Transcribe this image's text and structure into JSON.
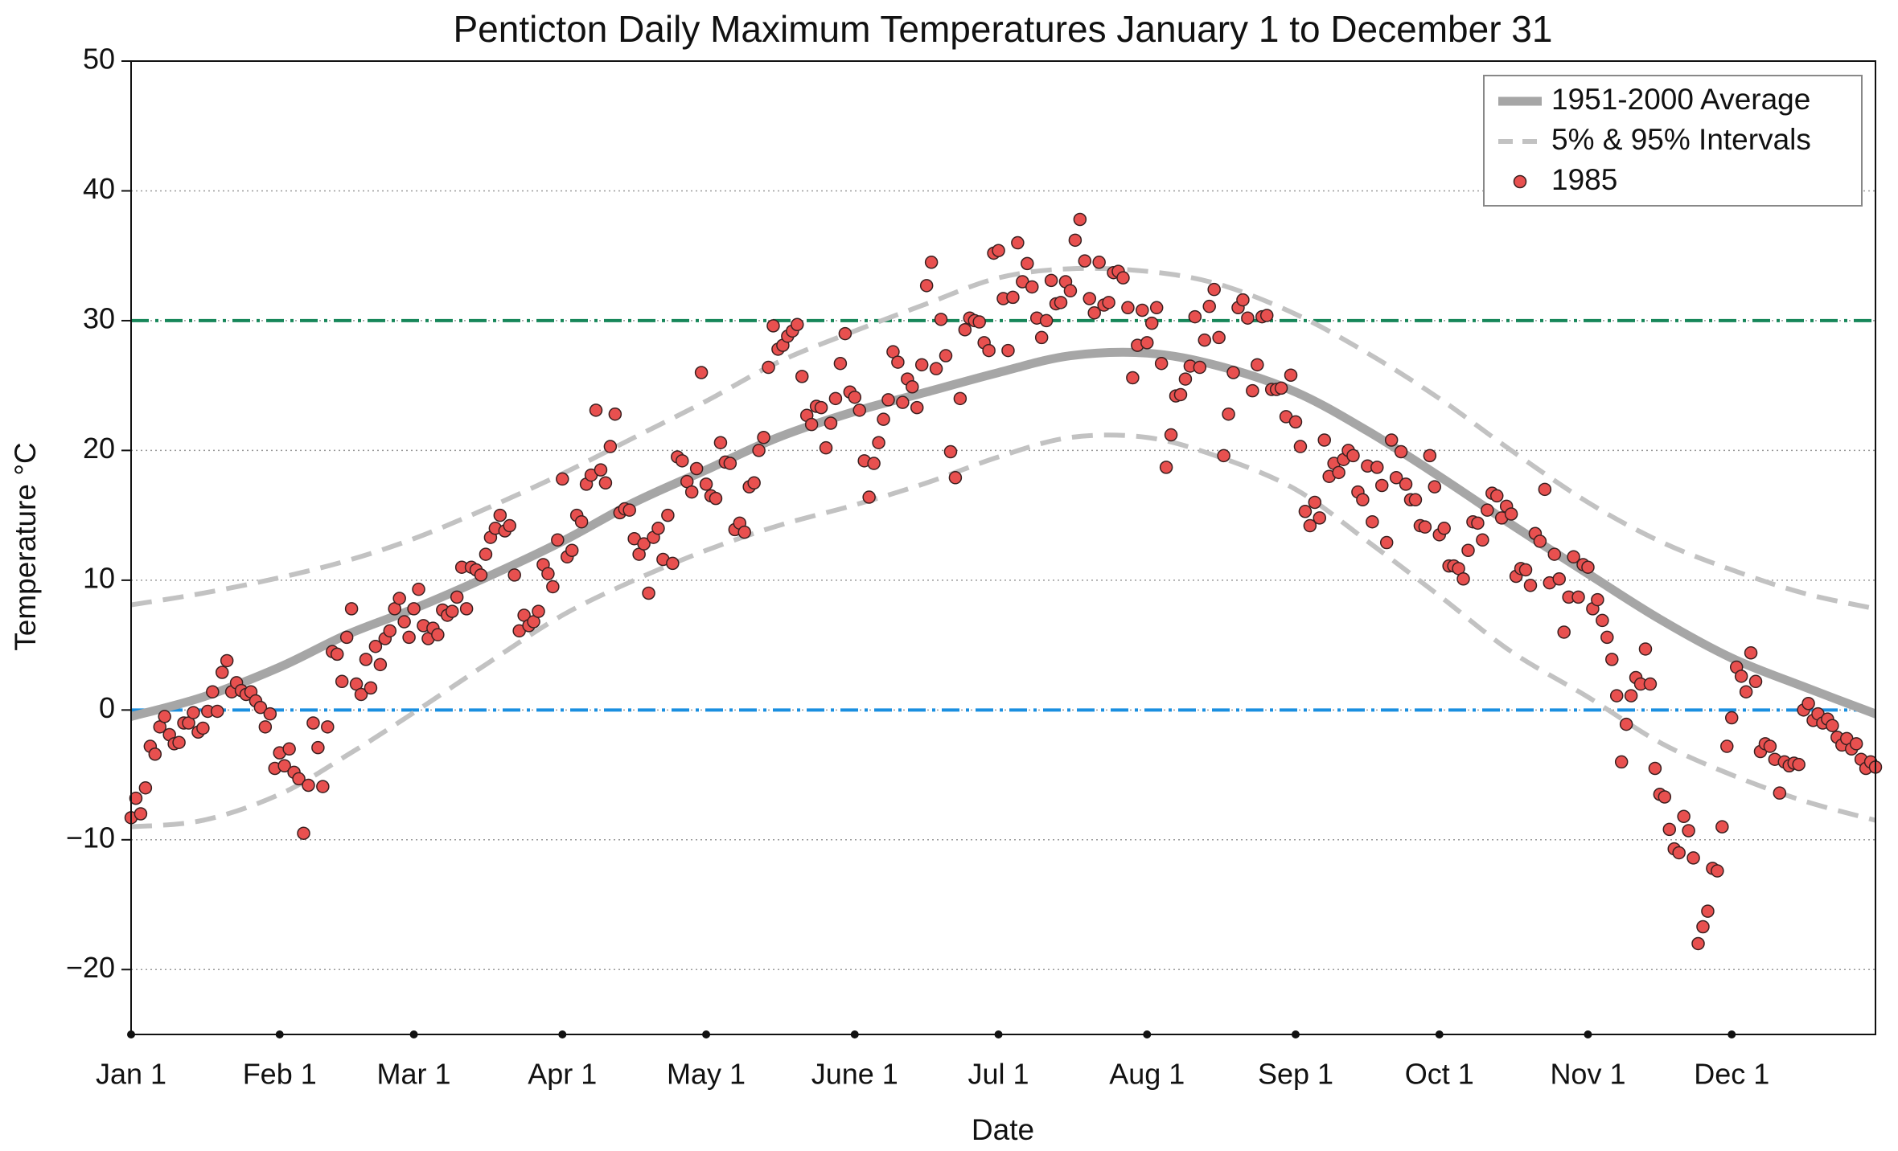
{
  "chart_data": {
    "type": "scatter",
    "title": "Penticton Daily Maximum Temperatures January 1 to December 31",
    "xlabel": "Date",
    "ylabel": "Temperature °C",
    "xlim": [
      1,
      365
    ],
    "ylim": [
      -25,
      50
    ],
    "xticks": [
      {
        "value": 1,
        "label": "Jan 1"
      },
      {
        "value": 32,
        "label": "Feb 1"
      },
      {
        "value": 60,
        "label": "Mar 1"
      },
      {
        "value": 91,
        "label": "Apr 1"
      },
      {
        "value": 121,
        "label": "May 1"
      },
      {
        "value": 152,
        "label": "June 1"
      },
      {
        "value": 182,
        "label": "Jul 1"
      },
      {
        "value": 213,
        "label": "Aug 1"
      },
      {
        "value": 244,
        "label": "Sep 1"
      },
      {
        "value": 274,
        "label": "Oct 1"
      },
      {
        "value": 305,
        "label": "Nov 1"
      },
      {
        "value": 335,
        "label": "Dec 1"
      }
    ],
    "yticks": [
      {
        "value": -20,
        "label": "−20"
      },
      {
        "value": -10,
        "label": "−10"
      },
      0,
      10,
      20,
      30,
      40,
      50
    ],
    "grid": true,
    "legend": "upper right",
    "hlines": [
      {
        "value": 30,
        "color": "#17875a"
      },
      {
        "value": 0,
        "color": "#1a8fe0"
      }
    ],
    "series": [
      {
        "name": "1951-2000 Average",
        "style": "line",
        "color": "#a6a6a6",
        "x": [
          1,
          16,
          32,
          46,
          60,
          75,
          91,
          106,
          121,
          136,
          152,
          167,
          182,
          197,
          213,
          228,
          244,
          259,
          274,
          289,
          305,
          320,
          335,
          350,
          365
        ],
        "values": [
          -0.5,
          1,
          3.3,
          5.8,
          7.8,
          10.2,
          13,
          16,
          18.5,
          21,
          23,
          24.5,
          26,
          27.3,
          27.5,
          26.5,
          24.5,
          21.5,
          18,
          14.3,
          10.5,
          7,
          4,
          1.8,
          -0.3
        ]
      },
      {
        "name": "5% & 95% Intervals",
        "style": "dashed",
        "color": "#c2c2c2",
        "x": [
          1,
          16,
          32,
          46,
          60,
          75,
          91,
          106,
          121,
          136,
          152,
          167,
          182,
          197,
          213,
          228,
          244,
          259,
          274,
          289,
          305,
          320,
          335,
          350,
          365
        ],
        "lower": [
          -9,
          -8.5,
          -6.5,
          -3.5,
          -0.2,
          3.5,
          7.3,
          10,
          12.3,
          14.2,
          15.8,
          17.5,
          19.5,
          21,
          21,
          19.5,
          17,
          13,
          8.8,
          4.5,
          1,
          -2.5,
          -5,
          -7,
          -8.5
        ],
        "upper": [
          8.1,
          9,
          10.2,
          11.5,
          13.2,
          15.5,
          18.2,
          21,
          23.8,
          26.8,
          29.2,
          31.3,
          33.3,
          34,
          33.8,
          32.8,
          30.5,
          27.5,
          24,
          20,
          16,
          13,
          10.8,
          9,
          7.8
        ]
      },
      {
        "name": "1985",
        "style": "markers",
        "color": "#e8504f",
        "x": [
          1,
          2,
          3,
          4,
          5,
          6,
          7,
          8,
          9,
          10,
          11,
          12,
          13,
          14,
          15,
          16,
          17,
          18,
          19,
          20,
          21,
          22,
          23,
          24,
          25,
          26,
          27,
          28,
          29,
          30,
          31,
          32,
          33,
          34,
          35,
          36,
          37,
          38,
          39,
          40,
          41,
          42,
          43,
          44,
          45,
          46,
          47,
          48,
          49,
          50,
          51,
          52,
          53,
          54,
          55,
          56,
          57,
          58,
          59,
          60,
          61,
          62,
          63,
          64,
          65,
          66,
          67,
          68,
          69,
          70,
          71,
          72,
          73,
          74,
          75,
          76,
          77,
          78,
          79,
          80,
          81,
          82,
          83,
          84,
          85,
          86,
          87,
          88,
          89,
          90,
          91,
          92,
          93,
          94,
          95,
          96,
          97,
          98,
          99,
          100,
          101,
          102,
          103,
          104,
          105,
          106,
          107,
          108,
          109,
          110,
          111,
          112,
          113,
          114,
          115,
          116,
          117,
          118,
          119,
          120,
          121,
          122,
          123,
          124,
          125,
          126,
          127,
          128,
          129,
          130,
          131,
          132,
          133,
          134,
          135,
          136,
          137,
          138,
          139,
          140,
          141,
          142,
          143,
          144,
          145,
          146,
          147,
          148,
          149,
          150,
          151,
          152,
          153,
          154,
          155,
          156,
          157,
          158,
          159,
          160,
          161,
          162,
          163,
          164,
          165,
          166,
          167,
          168,
          169,
          170,
          171,
          172,
          173,
          174,
          175,
          176,
          177,
          178,
          179,
          180,
          181,
          182,
          183,
          184,
          185,
          186,
          187,
          188,
          189,
          190,
          191,
          192,
          193,
          194,
          195,
          196,
          197,
          198,
          199,
          200,
          201,
          202,
          203,
          204,
          205,
          206,
          207,
          208,
          209,
          210,
          211,
          212,
          213,
          214,
          215,
          216,
          217,
          218,
          219,
          220,
          221,
          222,
          223,
          224,
          225,
          226,
          227,
          228,
          229,
          230,
          231,
          232,
          233,
          234,
          235,
          236,
          237,
          238,
          239,
          240,
          241,
          242,
          243,
          244,
          245,
          246,
          247,
          248,
          249,
          250,
          251,
          252,
          253,
          254,
          255,
          256,
          257,
          258,
          259,
          260,
          261,
          262,
          263,
          264,
          265,
          266,
          267,
          268,
          269,
          270,
          271,
          272,
          273,
          274,
          275,
          276,
          277,
          278,
          279,
          280,
          281,
          282,
          283,
          284,
          285,
          286,
          287,
          288,
          289,
          290,
          291,
          292,
          293,
          294,
          295,
          296,
          297,
          298,
          299,
          300,
          301,
          302,
          303,
          304,
          305,
          306,
          307,
          308,
          309,
          310,
          311,
          312,
          313,
          314,
          315,
          316,
          317,
          318,
          319,
          320,
          321,
          322,
          323,
          324,
          325,
          326,
          327,
          328,
          329,
          330,
          331,
          332,
          333,
          334,
          335,
          336,
          337,
          338,
          339,
          340,
          341,
          342,
          343,
          344,
          345,
          346,
          347,
          348,
          349,
          350,
          351,
          352,
          353,
          354,
          355,
          356,
          357,
          358,
          359,
          360,
          361,
          362,
          363,
          364,
          365
        ],
        "values": [
          -8.3,
          -6.8,
          -8,
          -6,
          -2.8,
          -3.4,
          -1.3,
          -0.5,
          -1.9,
          -2.6,
          -2.5,
          -1,
          -1,
          -0.2,
          -1.7,
          -1.4,
          -0.1,
          1.4,
          -0.1,
          2.9,
          3.8,
          1.4,
          2.1,
          1.5,
          1.2,
          1.4,
          0.7,
          0.2,
          -1.3,
          -0.3,
          -4.5,
          -3.3,
          -4.3,
          -3,
          -4.8,
          -5.3,
          -9.5,
          -5.8,
          -1,
          -2.9,
          -5.9,
          -1.3,
          4.5,
          4.3,
          2.2,
          5.6,
          7.8,
          2,
          1.2,
          3.9,
          1.7,
          4.9,
          3.5,
          5.5,
          6.1,
          7.8,
          8.6,
          6.8,
          5.6,
          7.8,
          9.3,
          6.5,
          5.5,
          6.3,
          5.8,
          7.7,
          7.3,
          7.6,
          8.7,
          11,
          7.8,
          11,
          10.8,
          10.4,
          12,
          13.3,
          14,
          15,
          13.8,
          14.2,
          10.4,
          6.1,
          7.3,
          6.5,
          6.8,
          7.6,
          11.2,
          10.5,
          9.5,
          13.1,
          17.8,
          11.8,
          12.3,
          15,
          14.5,
          17.4,
          18.1,
          23.1,
          18.5,
          17.5,
          20.3,
          22.8,
          15.2,
          15.5,
          15.4,
          13.2,
          12,
          12.8,
          9,
          13.3,
          14,
          11.6,
          15,
          11.3,
          19.5,
          19.2,
          17.6,
          16.8,
          18.6,
          26,
          17.4,
          16.5,
          16.3,
          20.6,
          19.1,
          19,
          13.9,
          14.4,
          13.7,
          17.2,
          17.5,
          20,
          21,
          26.4,
          29.6,
          27.8,
          28.1,
          28.8,
          29.2,
          29.7,
          25.7,
          22.7,
          22,
          23.4,
          23.3,
          20.2,
          22.1,
          24,
          26.7,
          29,
          24.5,
          24.1,
          23.1,
          19.2,
          16.4,
          19,
          20.6,
          22.4,
          23.9,
          27.6,
          26.8,
          23.7,
          25.5,
          24.9,
          23.3,
          26.6,
          32.7,
          34.5,
          26.3,
          30.1,
          27.3,
          19.9,
          17.9,
          24,
          29.3,
          30.2,
          30,
          29.9,
          28.3,
          27.7,
          35.2,
          35.4,
          31.7,
          27.7,
          31.8,
          36,
          33,
          34.4,
          32.6,
          30.2,
          28.7,
          30,
          33.1,
          31.3,
          31.4,
          33,
          32.3,
          36.2,
          37.8,
          34.6,
          31.7,
          30.6,
          34.5,
          31.2,
          31.4,
          33.7,
          33.8,
          33.3,
          31,
          25.6,
          28.1,
          30.8,
          28.3,
          29.8,
          31,
          26.7,
          18.7,
          21.2,
          24.2,
          24.3,
          25.5,
          26.5,
          30.3,
          26.4,
          28.5,
          31.1,
          32.4,
          28.7,
          19.6,
          22.8,
          26,
          31,
          31.6,
          30.2,
          24.6,
          26.6,
          30.3,
          30.4,
          24.7,
          24.7,
          24.8,
          22.6,
          25.8,
          22.2,
          20.3,
          15.3,
          14.2,
          16,
          14.8,
          20.8,
          18,
          19,
          18.3,
          19.3,
          20,
          19.6,
          16.8,
          16.2,
          18.8,
          14.5,
          18.7,
          17.3,
          12.9,
          20.8,
          17.9,
          19.9,
          17.4,
          16.2,
          16.2,
          14.2,
          14.1,
          19.6,
          17.2,
          13.5,
          14,
          11.1,
          11.1,
          10.9,
          10.1,
          12.3,
          14.5,
          14.4,
          13.1,
          15.4,
          16.7,
          16.5,
          14.8,
          15.7,
          15.1,
          10.3,
          10.9,
          10.8,
          9.6,
          13.6,
          13,
          17,
          9.8,
          12,
          10.1,
          6,
          8.7,
          11.8,
          8.7,
          11.2,
          11,
          7.8,
          8.5,
          6.9,
          5.6,
          3.9,
          1.1,
          -4,
          -1.1,
          1.1,
          2.5,
          2,
          4.7,
          2,
          -4.5,
          -6.5,
          -6.7,
          -9.2,
          -10.7,
          -11,
          -8.2,
          -9.3,
          -11.4,
          -18,
          -16.7,
          -15.5,
          -12.2,
          -12.4,
          -9,
          -2.8,
          -0.6,
          3.3,
          2.6,
          1.4,
          4.4,
          2.2,
          -3.2,
          -2.6,
          -2.8,
          -3.8,
          -6.4,
          -4,
          -4.3,
          -4.1,
          -4.2,
          0,
          0.5,
          -0.8,
          -0.3,
          -1,
          -0.7,
          -1.2,
          -2.1,
          -2.7,
          -2.2,
          -3,
          -2.6,
          -3.8,
          -4.5,
          -4,
          -4.4
        ]
      }
    ]
  }
}
